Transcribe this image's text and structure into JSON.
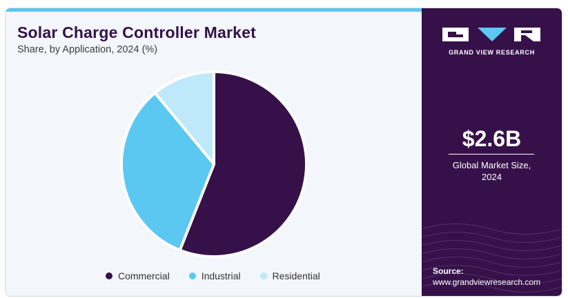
{
  "header": {
    "title": "Solar Charge Controller Market",
    "subtitle": "Share, by Application, 2024 (%)"
  },
  "chart_data": {
    "type": "pie",
    "title": "Solar Charge Controller Market",
    "subtitle": "Share, by Application, 2024 (%)",
    "labels": [
      "Commercial",
      "Industrial",
      "Residential"
    ],
    "values": [
      56,
      33,
      11
    ],
    "colors": [
      "#361149",
      "#5bc8f2",
      "#bfe8fa"
    ],
    "legend_position": "bottom"
  },
  "sidebar": {
    "brand": "GRAND VIEW RESEARCH",
    "market_size_value": "$2.6B",
    "market_size_label_line1": "Global Market Size,",
    "market_size_label_line2": "2024",
    "source_label": "Source:",
    "source_url": "www.grandviewresearch.com",
    "background_color": "#361149",
    "accent_color": "#5bc8f2"
  }
}
